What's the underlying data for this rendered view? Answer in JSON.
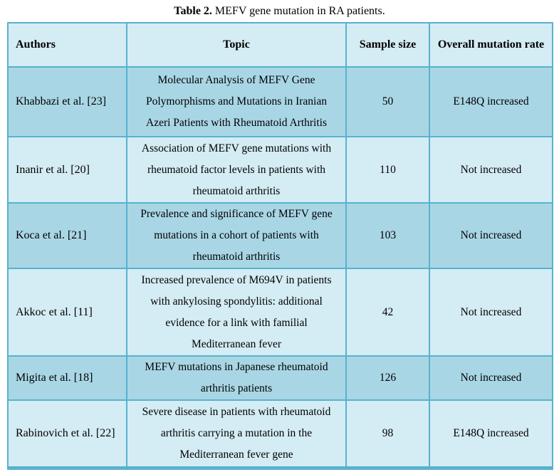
{
  "caption": {
    "label": "Table 2.",
    "text": "MEFV gene mutation in RA patients."
  },
  "table": {
    "headers": [
      "Authors",
      "Topic",
      "Sample size",
      "Overall mutation rate"
    ],
    "rows": [
      {
        "authors": "Khabbazi et al. [23]",
        "topic": "Molecular Analysis of MEFV Gene Polymorphisms and Mutations in Iranian Azeri Patients with Rheumatoid Arthritis",
        "sample_size": "50",
        "mutation_rate": "E148Q increased"
      },
      {
        "authors": "Inanir et al. [20]",
        "topic": "Association of MEFV gene mutations with rheumatoid factor levels in patients with rheumatoid arthritis",
        "sample_size": "110",
        "mutation_rate": "Not increased"
      },
      {
        "authors": "Koca et al. [21]",
        "topic": "Prevalence and significance of MEFV gene mutations in a cohort of patients with rheumatoid arthritis",
        "sample_size": "103",
        "mutation_rate": "Not increased"
      },
      {
        "authors": "Akkoc et al. [11]",
        "topic": "Increased prevalence of M694V in patients with ankylosing spondylitis: additional evidence for a link with familial Mediterranean fever",
        "sample_size": "42",
        "mutation_rate": "Not increased"
      },
      {
        "authors": "Migita et al. [18]",
        "topic": "MEFV mutations in Japanese rheumatoid arthritis patients",
        "sample_size": "126",
        "mutation_rate": "Not increased"
      },
      {
        "authors": "Rabinovich et al. [22]",
        "topic": "Severe disease in patients with rheumatoid arthritis carrying a mutation in the Mediterranean fever gene",
        "sample_size": "98",
        "mutation_rate": "E148Q increased"
      }
    ]
  },
  "colors": {
    "row_light": "#d4ecf4",
    "row_dark": "#a9d6e5",
    "border": "#58b2ce",
    "text": "#000000"
  }
}
